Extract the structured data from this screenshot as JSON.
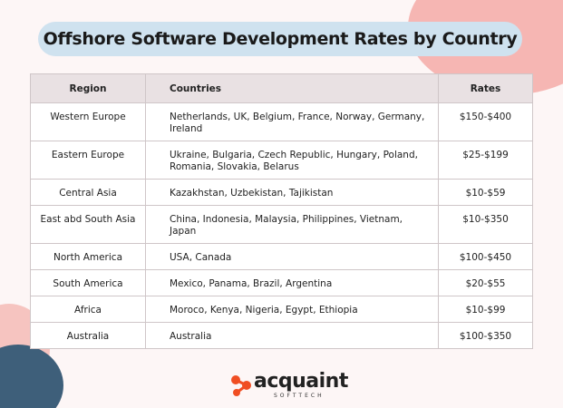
{
  "header": {
    "title": "Offshore Software Development Rates by Country"
  },
  "table": {
    "columns": [
      "Region",
      "Countries",
      "Rates"
    ],
    "rows": [
      [
        "Western Europe",
        "Netherlands, UK, Belgium, France, Norway, Germany, Ireland",
        "$150-$400"
      ],
      [
        "Eastern Europe",
        "Ukraine, Bulgaria, Czech Republic, Hungary, Poland, Romania, Slovakia, Belarus",
        "$25-$199"
      ],
      [
        "Central Asia",
        "Kazakhstan, Uzbekistan, Tajikistan",
        "$10-$59"
      ],
      [
        "East abd South Asia",
        "China, Indonesia, Malaysia, Philippines, Vietnam, Japan",
        "$10-$350"
      ],
      [
        "North America",
        "USA, Canada",
        "$100-$450"
      ],
      [
        "South America",
        "Mexico, Panama, Brazil, Argentina",
        "$20-$55"
      ],
      [
        "Africa",
        "Moroco, Kenya, Nigeria, Egypt, Ethiopia",
        "$10-$99"
      ],
      [
        "Australia",
        "Australia",
        "$100-$350"
      ]
    ]
  },
  "footer": {
    "logo": "acquaint",
    "logo_sub": "SOFTTECH"
  }
}
